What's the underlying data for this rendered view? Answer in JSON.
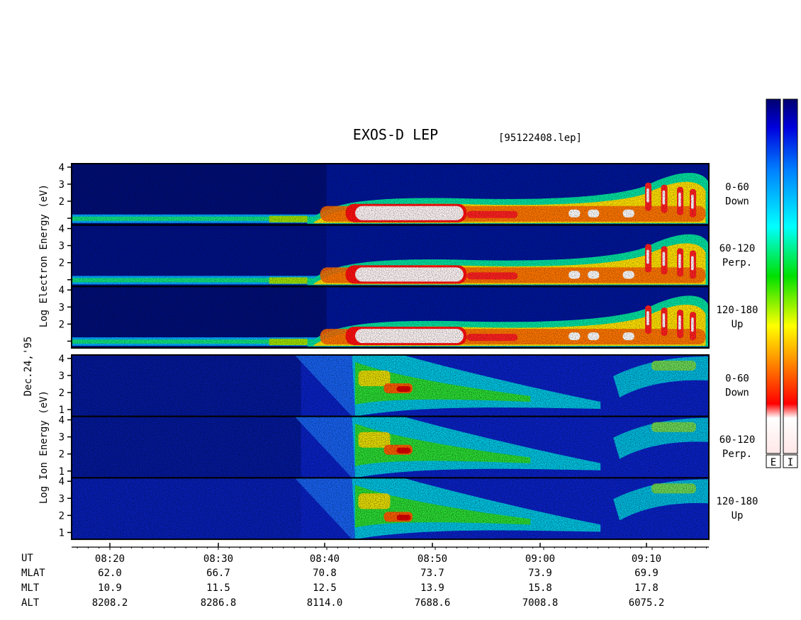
{
  "title": "EXOS-D LEP",
  "file_label": "[95122408.lep]",
  "date_label": "Dec.24,'95",
  "chart_data": {
    "type": "heatmap",
    "x_ticks": [
      "08:20",
      "08:30",
      "08:40",
      "08:50",
      "09:00",
      "09:10"
    ],
    "y_ticks": [
      "1",
      "2",
      "3",
      "4"
    ],
    "groups": [
      {
        "ylabel_lines": [
          "Log",
          "Electron",
          "Energy",
          "(eV)"
        ],
        "ylabel_text": "Log  Electron  Energy  (eV)",
        "panels": [
          {
            "pitch": "0-60",
            "dir": "Down"
          },
          {
            "pitch": "60-120",
            "dir": "Perp."
          },
          {
            "pitch": "120-180",
            "dir": "Up"
          }
        ]
      },
      {
        "ylabel_lines": [
          "Log",
          "Ion",
          "Energy",
          "(eV)"
        ],
        "ylabel_text": "Log  Ion  Energy  (eV)",
        "panels": [
          {
            "pitch": "0-60",
            "dir": "Down"
          },
          {
            "pitch": "60-120",
            "dir": "Perp."
          },
          {
            "pitch": "120-180",
            "dir": "Up"
          }
        ]
      }
    ],
    "colorbars": [
      "E",
      "I"
    ],
    "ephemeris": [
      {
        "label": "UT",
        "values": [
          "",
          "",
          "",
          "",
          "",
          ""
        ]
      },
      {
        "label": "MLAT",
        "values": [
          "62.0",
          "66.7",
          "70.8",
          "73.7",
          "73.9",
          "69.9"
        ]
      },
      {
        "label": "MLT",
        "values": [
          "10.9",
          "11.5",
          "12.5",
          "13.9",
          "15.8",
          "17.8"
        ]
      },
      {
        "label": "ALT",
        "values": [
          "8208.2",
          "8286.8",
          "8114.0",
          "7688.6",
          "7008.8",
          "6075.2"
        ]
      }
    ]
  }
}
